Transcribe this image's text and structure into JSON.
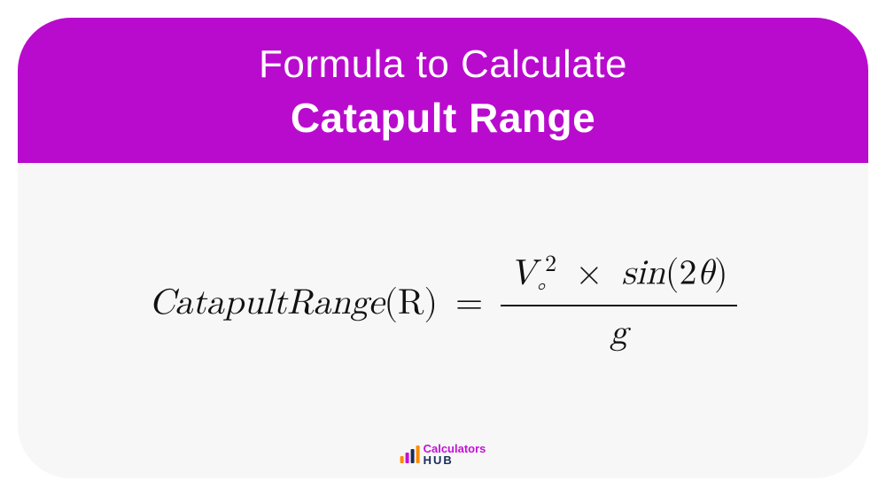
{
  "card": {
    "border_radius": 60,
    "background_color": "#f7f7f7"
  },
  "header": {
    "background_color": "#b90bce",
    "text_color": "#ffffff",
    "line1": "Formula to Calculate",
    "line1_fontsize": 44,
    "line1_weight": 400,
    "line2": "Catapult Range",
    "line2_fontsize": 46,
    "line2_weight": 700
  },
  "formula": {
    "lhs_text": "CatapultRange",
    "lhs_var": "(R)",
    "equals": "=",
    "numerator_v": "V",
    "numerator_sub": "∘",
    "numerator_sup": "2",
    "times": "×",
    "sin": "sin",
    "sin_arg_open": "(2",
    "theta": "θ",
    "sin_arg_close": ")",
    "denominator": "g",
    "font_color": "#111111",
    "fontsize": 40
  },
  "logo": {
    "brand_top": "Calculators",
    "brand_bottom": "HUB",
    "top_color": "#c410d6",
    "bottom_color": "#1a2b5c",
    "bars": [
      {
        "height": 8,
        "color": "#ff8a00"
      },
      {
        "height": 12,
        "color": "#c410d6"
      },
      {
        "height": 16,
        "color": "#1a2b5c"
      },
      {
        "height": 20,
        "color": "#ff8a00"
      }
    ]
  }
}
